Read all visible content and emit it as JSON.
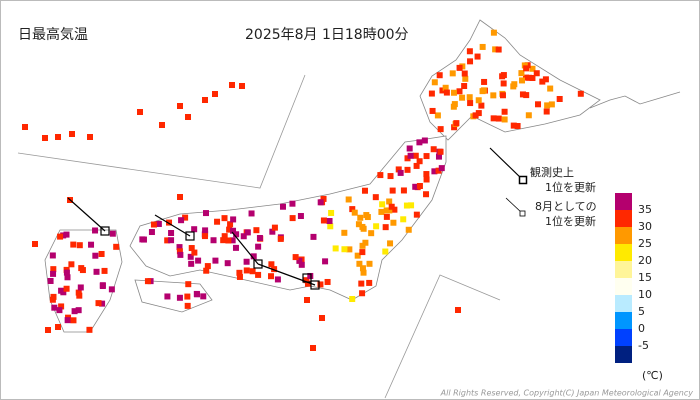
{
  "header": {
    "title": "日最高気温",
    "timestamp": "2025年8月 1日18時00分"
  },
  "notes": {
    "all_time": [
      "観測史上",
      "1位を更新"
    ],
    "august": [
      "8月としての",
      "1位を更新"
    ]
  },
  "legend": {
    "colors": [
      "#b4006e",
      "#ff2800",
      "#ff9900",
      "#ffea00",
      "#fff599",
      "#fffff0",
      "#b9ebff",
      "#0096ff",
      "#0041ff",
      "#002080"
    ],
    "ticks": [
      35,
      30,
      25,
      20,
      15,
      10,
      5,
      0,
      -5
    ],
    "unit": "(℃)"
  },
  "footer": {
    "copyright": "All Rights Reserved, Copyright(C) Japan Meteorological Agency"
  }
}
